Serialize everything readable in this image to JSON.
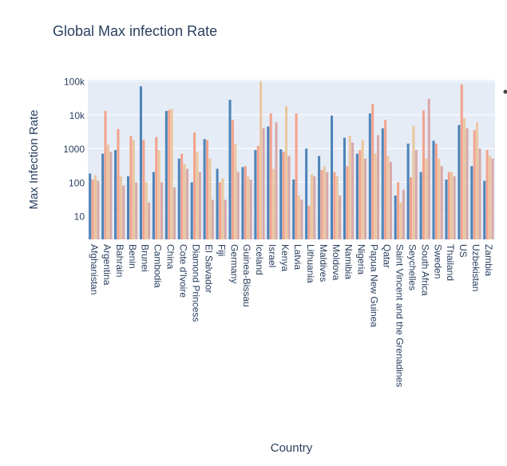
{
  "chart_data": {
    "type": "bar",
    "title": "Global Max infection Rate",
    "xlabel": "Country",
    "ylabel": "Max Infection Rate",
    "y_scale": "log",
    "ylim": [
      2,
      110000
    ],
    "y_ticks": [
      10,
      100,
      1000,
      10000,
      100000
    ],
    "y_tick_labels": [
      "10",
      "100",
      "1000",
      "10k",
      "100k"
    ],
    "plot_background": "#e5ecf6",
    "grid": true,
    "legend": "hidden (clipped at right edge)",
    "x_tick_labels": [
      "Afghanistan",
      "Argentina",
      "Bahrain",
      "Benin",
      "Brunei",
      "Cambodia",
      "China",
      "Cote d'Ivoire",
      "Diamond Princess",
      "El Salvador",
      "Fiji",
      "Germany",
      "Guinea-Bissau",
      "Iceland",
      "Israel",
      "Kenya",
      "Latvia",
      "Lithuania",
      "Maldives",
      "Moldova",
      "Namibia",
      "Nigeria",
      "Papua New Guinea",
      "Qatar",
      "Saint Vincent and the Grenadines",
      "Seychelles",
      "South Africa",
      "Sweden",
      "Thailand",
      "US",
      "Uzbekistan",
      "Zambia"
    ],
    "series": [
      {
        "color": "#4e84b8",
        "values": [
          180,
          700,
          900,
          150,
          70000,
          200,
          13000,
          500,
          100,
          1900,
          250,
          28000,
          280,
          900,
          4500,
          950,
          120,
          1000,
          600,
          9500,
          2100,
          700,
          11000,
          4000,
          40,
          1400,
          200,
          1700,
          120,
          5000,
          300,
          110
        ]
      },
      {
        "color": "#f3a28d",
        "values": [
          120,
          13000,
          3800,
          2400,
          1800,
          2200,
          14000,
          700,
          3000,
          1800,
          100,
          7000,
          300,
          1200,
          11000,
          800,
          11000,
          20,
          230,
          200,
          300,
          900,
          21000,
          7000,
          100,
          140,
          13500,
          1400,
          200,
          80000,
          3500,
          900
        ]
      },
      {
        "color": "#e9c79f",
        "values": [
          160,
          1300,
          150,
          1800,
          100,
          900,
          15000,
          350,
          800,
          500,
          130,
          1400,
          150,
          100000,
          250,
          18000,
          40,
          170,
          300,
          150,
          2400,
          1800,
          700,
          600,
          25,
          4800,
          500,
          500,
          200,
          8000,
          6000,
          600
        ]
      },
      {
        "color": "#d8a8a8",
        "values": [
          110,
          800,
          80,
          100,
          25,
          100,
          70,
          250,
          200,
          30,
          30,
          200,
          120,
          4000,
          6000,
          600,
          30,
          150,
          200,
          40,
          1500,
          500,
          2500,
          400,
          60,
          900,
          30000,
          300,
          150,
          4000,
          1000,
          500
        ]
      }
    ]
  }
}
